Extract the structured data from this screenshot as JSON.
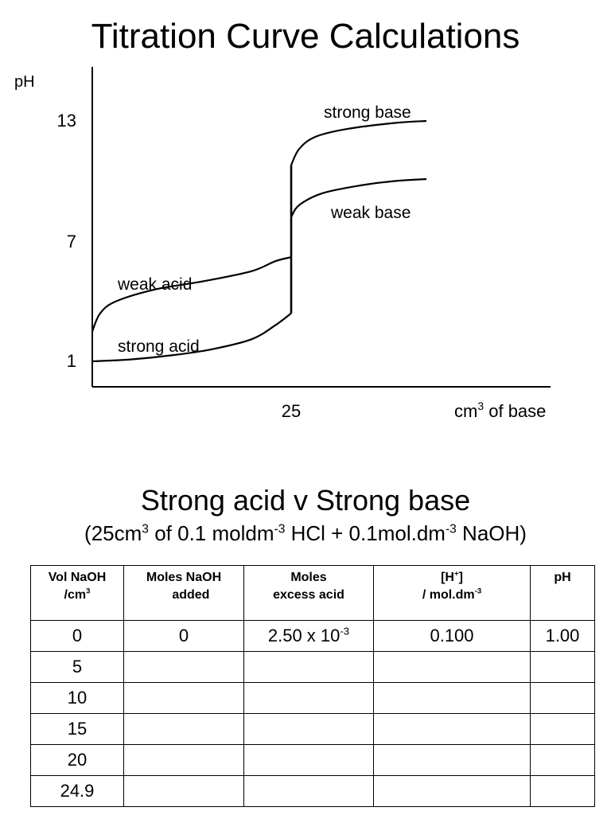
{
  "page": {
    "title": "Titration Curve Calculations",
    "section_title": "Strong acid v Strong base",
    "section_subtitle": {
      "a": "(25cm",
      "a_sup": "3",
      "b": " of 0.1 moldm",
      "b_sup": "-3",
      "c": " HCl + 0.1mol.dm",
      "c_sup": "-3",
      "d": " NaOH)"
    }
  },
  "chart_data": {
    "type": "line",
    "ylabel": "pH",
    "xlabel": "cm",
    "xlabel_sup": "3",
    "xlabel_suffix": " of base",
    "y_ticks": [
      "13",
      "7",
      "1"
    ],
    "x_ticks": [
      "25"
    ],
    "x_range": [
      0,
      48
    ],
    "y_range": [
      0,
      14
    ],
    "curves": [
      {
        "name": "strong acid",
        "points": [
          [
            0,
            1
          ],
          [
            5,
            1.1
          ],
          [
            10,
            1.3
          ],
          [
            15,
            1.6
          ],
          [
            20,
            2.1
          ],
          [
            23,
            2.8
          ],
          [
            25,
            3.4
          ]
        ]
      },
      {
        "name": "weak acid",
        "points": [
          [
            0,
            2.5
          ],
          [
            1,
            3.4
          ],
          [
            3,
            4.0
          ],
          [
            8,
            4.6
          ],
          [
            14,
            5.0
          ],
          [
            20,
            5.5
          ],
          [
            23,
            6.0
          ],
          [
            25,
            6.2
          ]
        ]
      },
      {
        "name": "strong base",
        "points": [
          [
            25,
            10.8
          ],
          [
            26,
            11.6
          ],
          [
            28,
            12.2
          ],
          [
            32,
            12.6
          ],
          [
            38,
            12.9
          ],
          [
            42,
            13.0
          ]
        ]
      },
      {
        "name": "weak base",
        "points": [
          [
            25,
            8.2
          ],
          [
            26,
            8.8
          ],
          [
            29,
            9.4
          ],
          [
            34,
            9.8
          ],
          [
            38,
            10.0
          ],
          [
            42,
            10.1
          ]
        ]
      }
    ],
    "vertical_segments": [
      {
        "x": 25,
        "y_from": 3.4,
        "y_to": 6.2
      },
      {
        "x": 25,
        "y_from": 6.2,
        "y_to": 8.2
      },
      {
        "x": 25,
        "y_from": 8.2,
        "y_to": 10.8
      }
    ]
  },
  "table": {
    "headers": [
      {
        "line1": "Vol NaOH",
        "line2": "/cm",
        "line2_sup": "3"
      },
      {
        "line1": "Moles NaOH",
        "line2": "added",
        "line2_sup": ""
      },
      {
        "line1": "Moles",
        "line2": "excess acid",
        "line2_sup": ""
      },
      {
        "line1": "[H",
        "line1_sup": "+",
        "line1_end": "]",
        "line2": "/ mol.dm",
        "line2_sup": "-3"
      },
      {
        "line1": "pH",
        "line2": "",
        "line2_sup": ""
      }
    ],
    "rows": [
      {
        "vol": "0",
        "moles_added": "0",
        "excess_base": "2.50 x 10",
        "excess_sup": "-3",
        "h": "0.100",
        "ph": "1.00"
      },
      {
        "vol": "5",
        "moles_added": "",
        "excess_base": "",
        "excess_sup": "",
        "h": "",
        "ph": ""
      },
      {
        "vol": "10",
        "moles_added": "",
        "excess_base": "",
        "excess_sup": "",
        "h": "",
        "ph": ""
      },
      {
        "vol": "15",
        "moles_added": "",
        "excess_base": "",
        "excess_sup": "",
        "h": "",
        "ph": ""
      },
      {
        "vol": "20",
        "moles_added": "",
        "excess_base": "",
        "excess_sup": "",
        "h": "",
        "ph": ""
      },
      {
        "vol": "24.9",
        "moles_added": "",
        "excess_base": "",
        "excess_sup": "",
        "h": "",
        "ph": ""
      }
    ]
  }
}
